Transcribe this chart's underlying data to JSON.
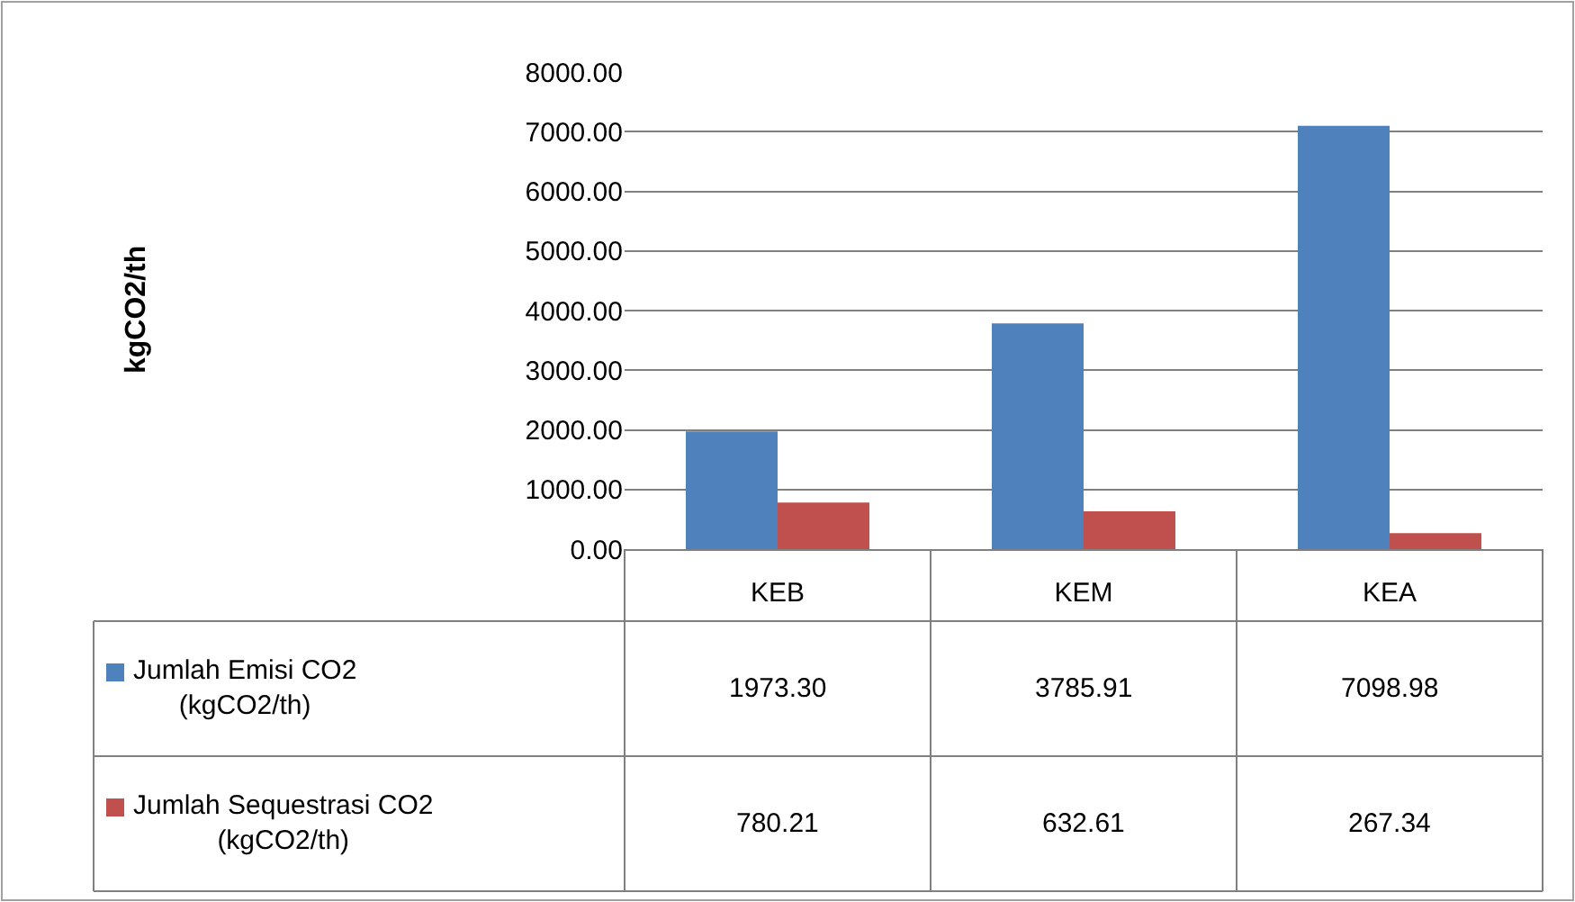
{
  "chart_data": {
    "type": "bar",
    "annotations": [
      "kgCO2/th"
    ],
    "categories": [
      "KEB",
      "KEM",
      "KEA"
    ],
    "series": [
      {
        "name": "Jumlah Emisi CO2 (kgCO2/th)",
        "color": "#4f81bd",
        "values": [
          1973.3,
          3785.91,
          7098.98
        ],
        "value_labels": [
          "1973.30",
          "3785.91",
          "7098.98"
        ]
      },
      {
        "name": "Jumlah Sequestrasi CO2 (kgCO2/th)",
        "color": "#c0504d",
        "values": [
          780.21,
          632.61,
          267.34
        ],
        "value_labels": [
          "780.21",
          "632.61",
          "267.34"
        ]
      }
    ],
    "ylim": [
      0,
      8000
    ],
    "yticks": [
      {
        "value": 0,
        "label": "0.00"
      },
      {
        "value": 1000,
        "label": "1000.00"
      },
      {
        "value": 2000,
        "label": "2000.00"
      },
      {
        "value": 3000,
        "label": "3000.00"
      },
      {
        "value": 4000,
        "label": "4000.00"
      },
      {
        "value": 5000,
        "label": "5000.00"
      },
      {
        "value": 6000,
        "label": "6000.00"
      },
      {
        "value": 7000,
        "label": "7000.00"
      },
      {
        "value": 8000,
        "label": "8000.00"
      }
    ],
    "grid": "y",
    "legend": "bottom left"
  }
}
